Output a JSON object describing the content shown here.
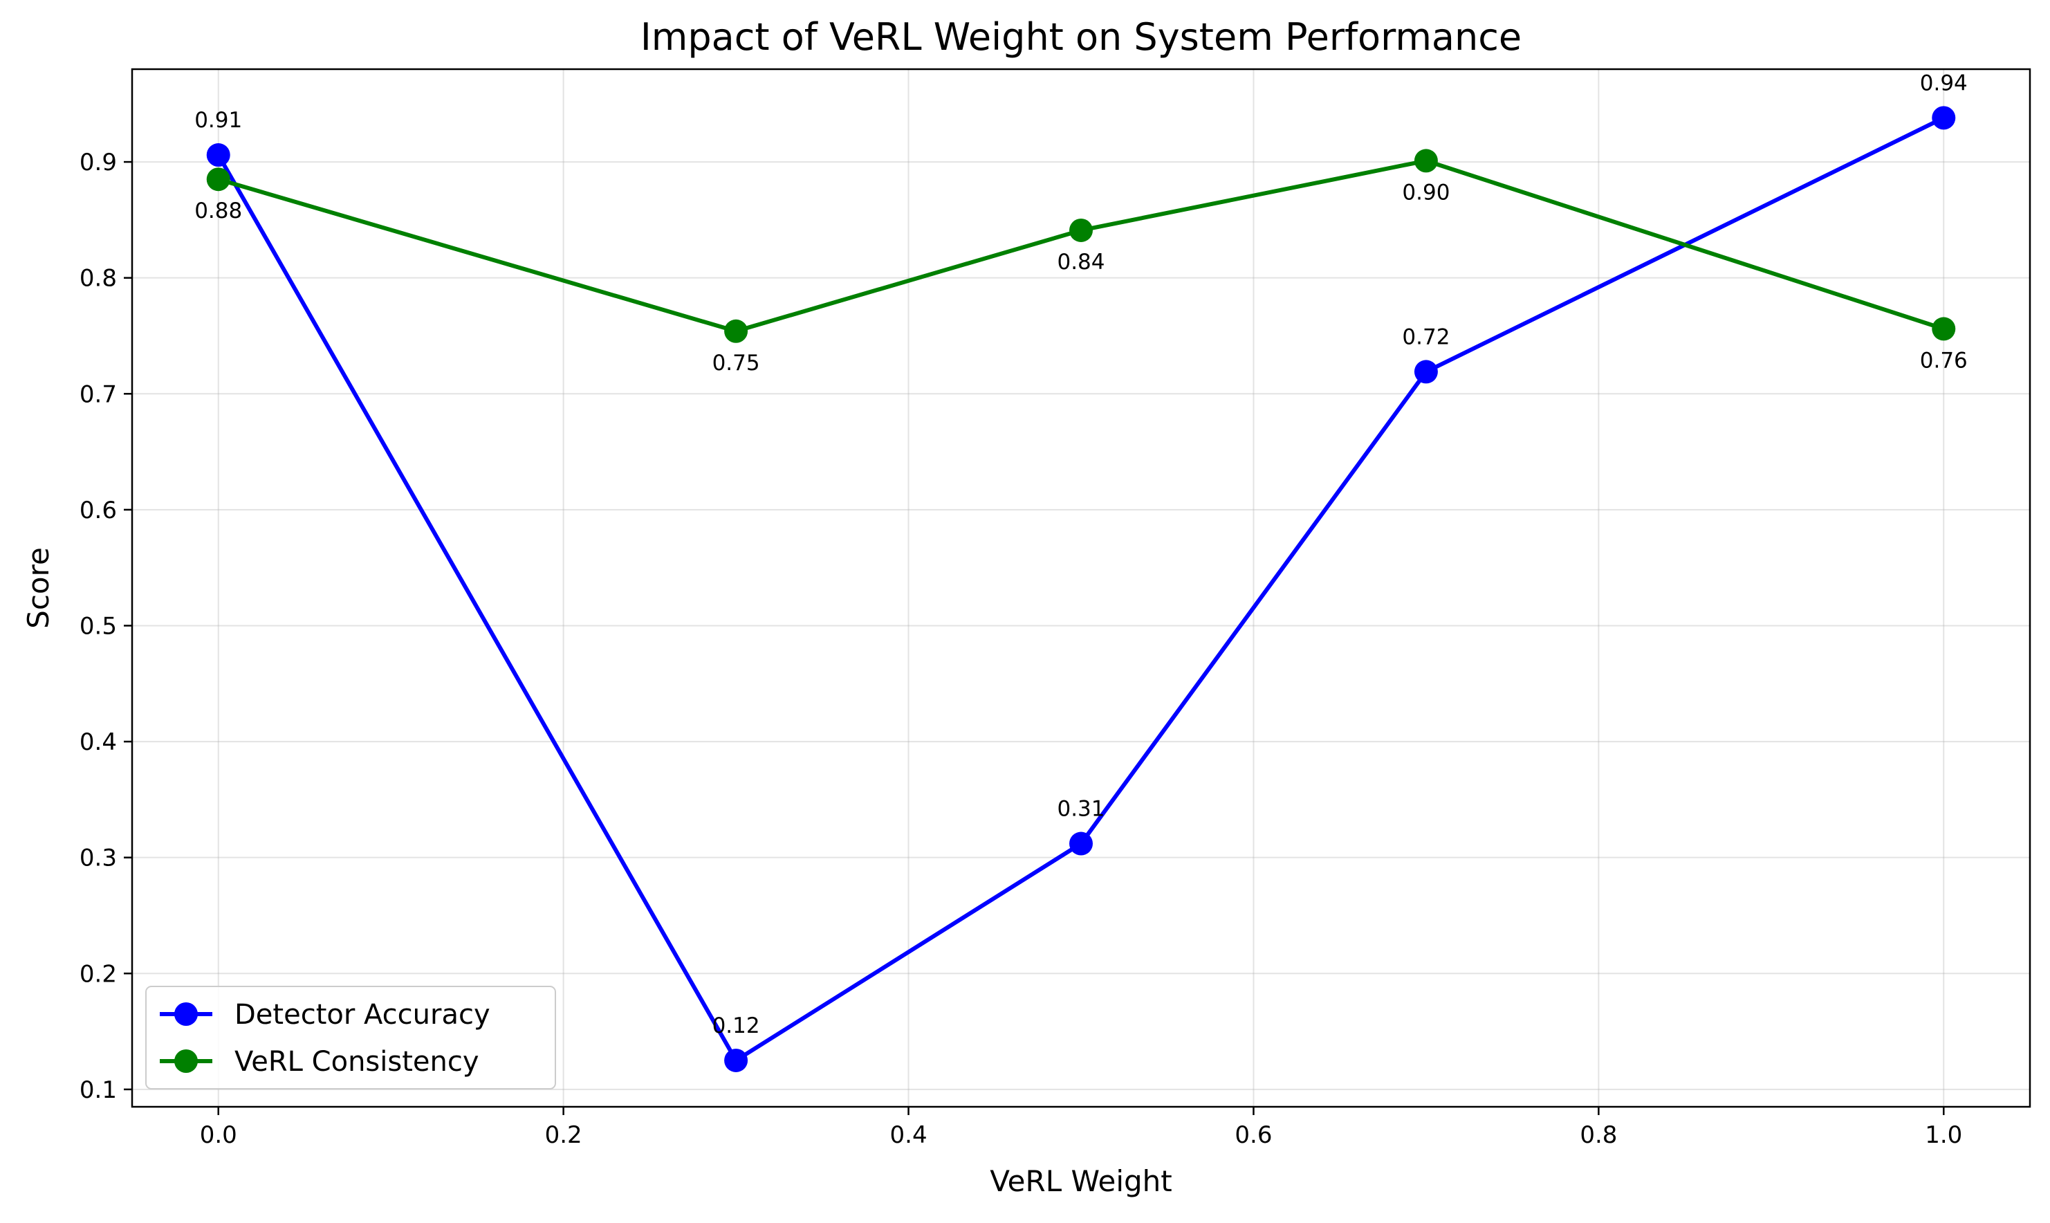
{
  "chart_data": {
    "type": "line",
    "title": "Impact of VeRL Weight on System Performance",
    "xlabel": "VeRL Weight",
    "ylabel": "Score",
    "xlim": [
      -0.05,
      1.05
    ],
    "ylim": [
      0.085,
      0.98
    ],
    "xticks": [
      0.0,
      0.2,
      0.4,
      0.6,
      0.8,
      1.0
    ],
    "xtick_labels": [
      "0.0",
      "0.2",
      "0.4",
      "0.6",
      "0.8",
      "1.0"
    ],
    "yticks": [
      0.1,
      0.2,
      0.3,
      0.4,
      0.5,
      0.6,
      0.7,
      0.8,
      0.9
    ],
    "ytick_labels": [
      "0.1",
      "0.2",
      "0.3",
      "0.4",
      "0.5",
      "0.6",
      "0.7",
      "0.8",
      "0.9"
    ],
    "grid": true,
    "legend_position": "lower-left",
    "x": [
      0.0,
      0.3,
      0.5,
      0.7,
      1.0
    ],
    "series": [
      {
        "name": "Detector Accuracy",
        "color": "#0000ff",
        "values": [
          0.906,
          0.125,
          0.312,
          0.719,
          0.938
        ],
        "labels": [
          "0.91",
          "0.12",
          "0.31",
          "0.72",
          "0.94"
        ],
        "label_position": "above"
      },
      {
        "name": "VeRL Consistency",
        "color": "#008000",
        "values": [
          0.885,
          0.754,
          0.841,
          0.901,
          0.756
        ],
        "labels": [
          "0.88",
          "0.75",
          "0.84",
          "0.90",
          "0.76"
        ],
        "label_position": "below"
      }
    ]
  }
}
